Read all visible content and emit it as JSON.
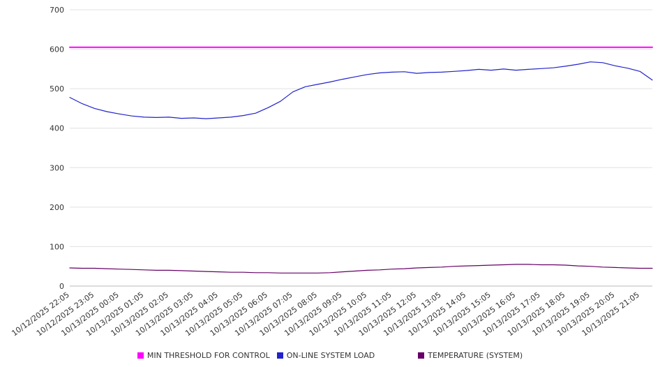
{
  "page": {
    "background": "#ffffff",
    "grid_color": "#e0e0e0",
    "axis_color": "#bbbbbb",
    "text_color": "#333333"
  },
  "chart_data": {
    "type": "line",
    "title": "",
    "xlabel": "",
    "ylabel": "",
    "ylim": [
      0,
      700
    ],
    "y_tick_step": 100,
    "grid": "horizontal",
    "legend_position": "bottom",
    "points_per_category": 2,
    "categories": [
      "10/12/2025 22:05",
      "10/12/2025 23:05",
      "10/13/2025 00:05",
      "10/13/2025 01:05",
      "10/13/2025 02:05",
      "10/13/2025 03:05",
      "10/13/2025 04:05",
      "10/13/2025 05:05",
      "10/13/2025 06:05",
      "10/13/2025 07:05",
      "10/13/2025 08:05",
      "10/13/2025 09:05",
      "10/13/2025 10:05",
      "10/13/2025 11:05",
      "10/13/2025 12:05",
      "10/13/2025 13:05",
      "10/13/2025 14:05",
      "10/13/2025 15:05",
      "10/13/2025 16:05",
      "10/13/2025 17:05",
      "10/13/2025 18:05",
      "10/13/2025 19:05",
      "10/13/2025 20:05",
      "10/13/2025 21:05"
    ],
    "series": [
      {
        "name": "MIN THRESHOLD FOR CONTROL",
        "color": "#ff00ff",
        "constant": 605
      },
      {
        "name": "ON-LINE SYSTEM LOAD",
        "color": "#2222cc",
        "values": [
          478,
          462,
          450,
          442,
          436,
          431,
          428,
          427,
          428,
          425,
          426,
          424,
          426,
          428,
          432,
          438,
          452,
          468,
          492,
          505,
          511,
          517,
          524,
          530,
          536,
          540,
          542,
          543,
          539,
          541,
          542,
          544,
          546,
          549,
          547,
          550,
          547,
          549,
          551,
          553,
          557,
          562,
          568,
          566,
          558,
          552,
          544,
          522
        ]
      },
      {
        "name": "TEMPERATURE (SYSTEM)",
        "color": "#660066",
        "values": [
          46,
          45,
          45,
          44,
          43,
          42,
          41,
          40,
          40,
          39,
          38,
          37,
          36,
          35,
          35,
          34,
          34,
          33,
          33,
          33,
          33,
          34,
          36,
          38,
          40,
          41,
          43,
          44,
          46,
          47,
          48,
          50,
          51,
          52,
          53,
          54,
          55,
          55,
          54,
          54,
          53,
          51,
          50,
          48,
          47,
          46,
          45,
          45
        ]
      }
    ]
  }
}
